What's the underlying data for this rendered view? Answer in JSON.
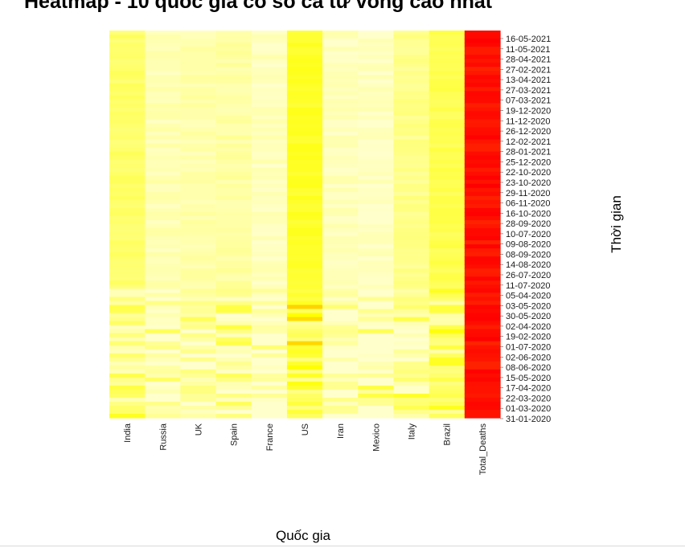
{
  "chart_data": {
    "type": "heatmap",
    "title": "Heatmap - 10 quốc gia có số ca tử vong cao nhất",
    "xlabel": "Quốc gia",
    "ylabel": "Thời gian",
    "x_categories": [
      "India",
      "Russia",
      "UK",
      "Spain",
      "France",
      "US",
      "Iran",
      "Mexico",
      "Italy",
      "Brazil",
      "Total_Deaths"
    ],
    "y_tick_labels": [
      "16-05-2021",
      "11-05-2021",
      "28-04-2021",
      "27-02-2021",
      "13-04-2021",
      "27-03-2021",
      "07-03-2021",
      "19-12-2020",
      "11-12-2020",
      "26-12-2020",
      "12-02-2021",
      "28-01-2021",
      "25-12-2020",
      "22-10-2020",
      "23-10-2020",
      "29-11-2020",
      "06-11-2020",
      "16-10-2020",
      "28-09-2020",
      "10-07-2020",
      "09-08-2020",
      "08-09-2020",
      "14-08-2020",
      "26-07-2020",
      "11-07-2020",
      "05-04-2020",
      "03-05-2020",
      "30-05-2020",
      "02-04-2020",
      "19-02-2020",
      "01-07-2020",
      "02-06-2020",
      "08-06-2020",
      "15-05-2020",
      "17-04-2020",
      "22-03-2020",
      "01-03-2020",
      "31-01-2020"
    ],
    "value_scale": "intensity 0 (light) – 1 (red)",
    "color_low": "#ffffcc",
    "color_mid": "#ffff00",
    "color_high": "#ff0000",
    "column_intensity": [
      0.24,
      0.06,
      0.08,
      0.1,
      0.04,
      0.4,
      0.04,
      0.03,
      0.16,
      0.3,
      1.0
    ],
    "legend": "none",
    "grid": false
  }
}
